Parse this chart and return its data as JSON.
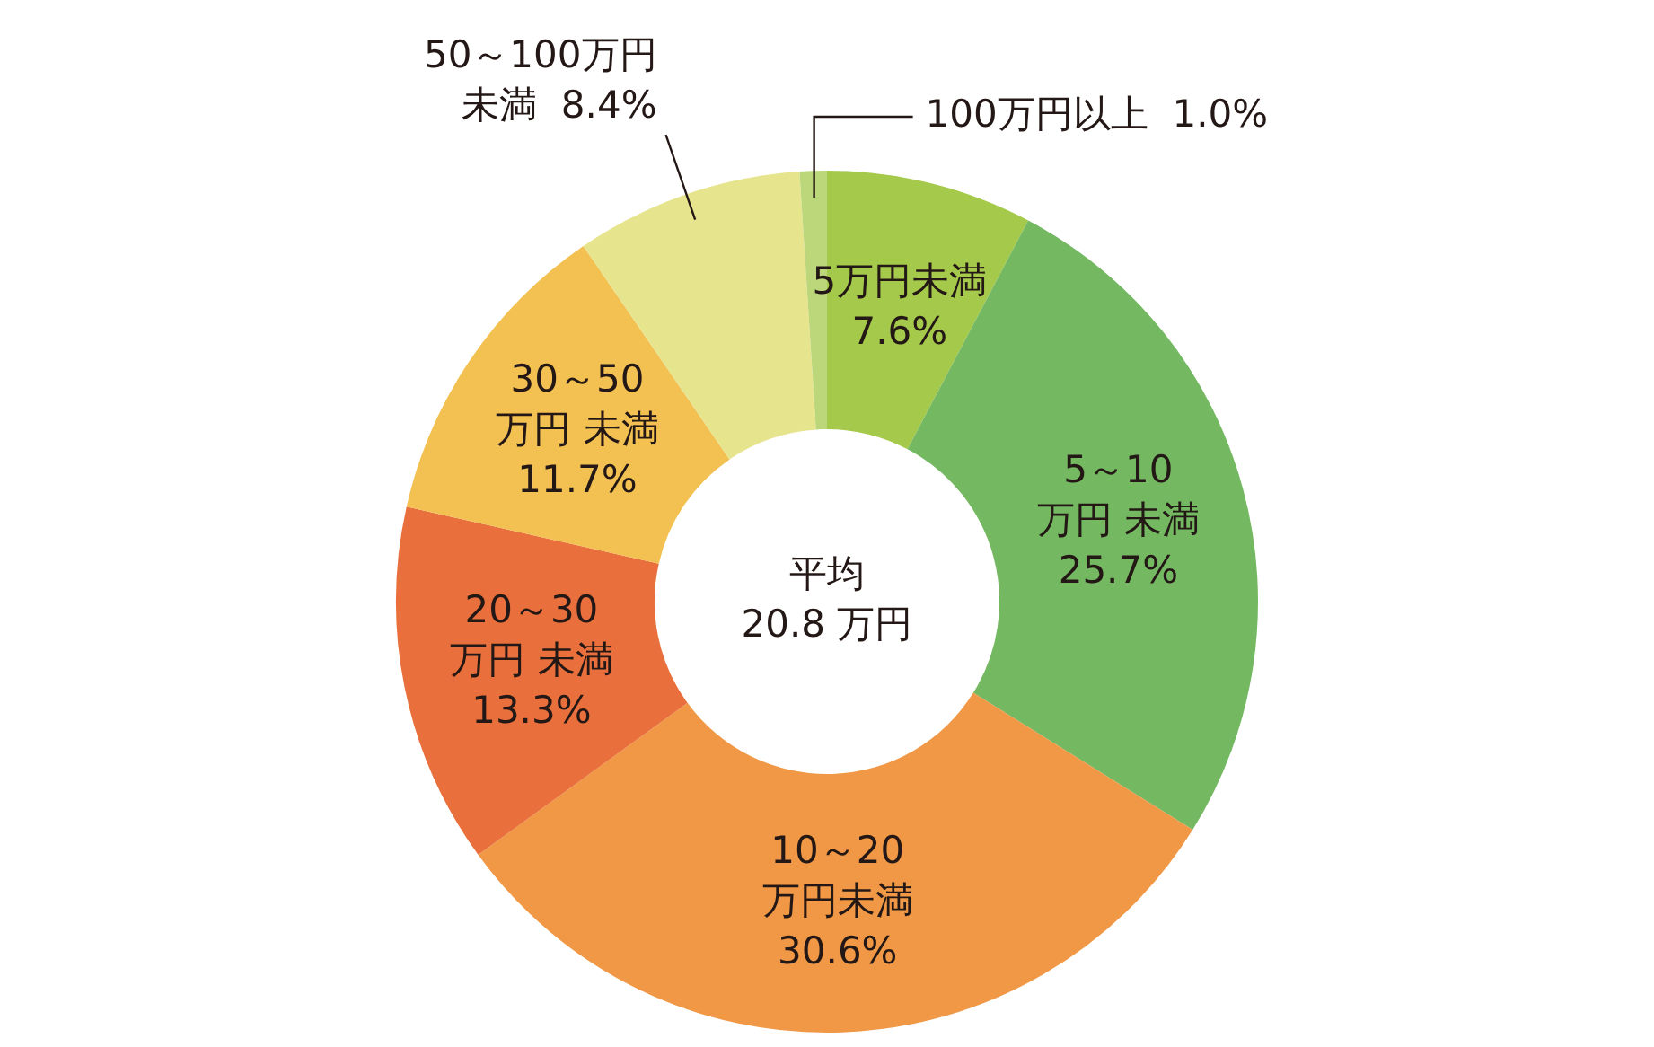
{
  "chart_data": {
    "type": "donut",
    "categories": [
      "5万円未満",
      "5～10万円 未満",
      "10～20万円未満",
      "20～30万円 未満",
      "30～50万円 未満",
      "50～100万円未満",
      "100万円以上"
    ],
    "values": [
      7.6,
      25.7,
      30.6,
      13.3,
      11.7,
      8.4,
      1.0
    ],
    "value_labels": [
      "7.6%",
      "25.7%",
      "30.6%",
      "13.3%",
      "11.7%",
      "8.4%",
      "1.0%"
    ],
    "colors": [
      "#a5c94a",
      "#74b862",
      "#f09845",
      "#e9703c",
      "#f3c052",
      "#e6e48c",
      "#bcd67a"
    ],
    "annotations": [
      "平均\n20.8 万円"
    ],
    "legend": false
  }
}
